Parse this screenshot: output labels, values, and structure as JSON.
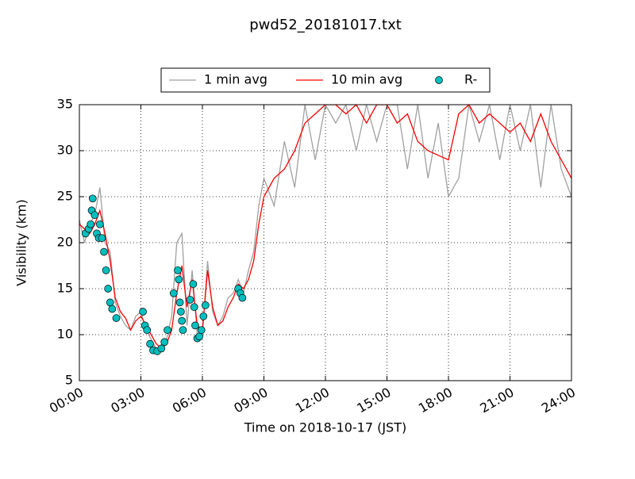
{
  "chart_data": {
    "type": "line",
    "title": "pwd52_20181017.txt",
    "xlabel": "Time on 2018-10-17 (JST)",
    "ylabel": "Visibility (km)",
    "x": [
      0,
      0.25,
      0.5,
      0.75,
      1,
      1.25,
      1.5,
      1.75,
      2,
      2.25,
      2.5,
      2.75,
      3,
      3.25,
      3.5,
      3.75,
      4,
      4.25,
      4.5,
      4.75,
      5,
      5.25,
      5.5,
      5.75,
      6,
      6.25,
      6.5,
      6.75,
      7,
      7.25,
      7.5,
      7.75,
      8,
      8.25,
      8.5,
      8.75,
      9,
      9.5,
      10,
      10.5,
      11,
      11.5,
      12,
      12.5,
      13,
      13.5,
      14,
      14.5,
      15,
      15.5,
      16,
      16.5,
      17,
      17.5,
      18,
      18.5,
      19,
      19.5,
      20,
      20.5,
      21,
      21.5,
      22,
      22.5,
      23,
      23.5,
      24
    ],
    "series": [
      {
        "name": "1 min avg",
        "color": "#a0a0a0",
        "values": [
          22.5,
          20,
          22,
          23,
          26,
          20,
          19,
          13.5,
          12,
          11,
          10.5,
          12,
          12.5,
          10.5,
          9.5,
          8.5,
          8.3,
          9.5,
          12,
          20,
          21,
          11,
          17,
          10,
          10,
          18,
          12.5,
          11,
          12,
          14,
          14.5,
          16,
          14.5,
          17,
          19,
          24,
          27,
          24,
          31,
          26,
          35,
          29,
          35,
          33,
          35,
          30,
          35,
          31,
          35,
          35,
          28,
          35,
          27,
          33,
          25,
          27,
          35,
          31,
          35,
          29,
          35,
          30,
          35,
          26,
          35,
          28,
          25
        ]
      },
      {
        "name": "10 min avg",
        "color": "#ff0000",
        "values": [
          22,
          21.5,
          21,
          22,
          23.5,
          21,
          18,
          14,
          12.5,
          11.8,
          10.5,
          11.5,
          12,
          11,
          10,
          9,
          8.5,
          9,
          10.5,
          14.5,
          17.5,
          13,
          16,
          11,
          10.5,
          17,
          13,
          11,
          11.5,
          13,
          14,
          15.5,
          15,
          16,
          18,
          22,
          25,
          27,
          28,
          30,
          33,
          34,
          35,
          35,
          34,
          35,
          33,
          35,
          35,
          33,
          34,
          31,
          30,
          29.5,
          29,
          34,
          35,
          33,
          34,
          33,
          32,
          33,
          31,
          34,
          31,
          29,
          27
        ]
      },
      {
        "name": "R-",
        "color": "#00bfbf",
        "type": "scatter",
        "x": [
          0.3,
          0.45,
          0.55,
          0.6,
          0.65,
          0.75,
          0.85,
          0.95,
          1.0,
          1.1,
          1.2,
          1.3,
          1.4,
          1.5,
          1.6,
          1.8,
          3.1,
          3.2,
          3.3,
          3.45,
          3.6,
          3.8,
          4.0,
          4.15,
          4.3,
          4.6,
          4.8,
          4.85,
          4.9,
          4.95,
          5.0,
          5.05,
          5.4,
          5.55,
          5.6,
          5.65,
          5.75,
          5.85,
          5.95,
          6.05,
          6.15,
          7.75,
          7.85,
          7.95
        ],
        "values": [
          21,
          21.5,
          22,
          23.5,
          24.8,
          23,
          21,
          20.5,
          22,
          20.5,
          19,
          17,
          15,
          13.5,
          12.8,
          11.8,
          12.5,
          11,
          10.5,
          9,
          8.3,
          8.2,
          8.5,
          9.2,
          10.5,
          14.5,
          17,
          16,
          13.5,
          12.5,
          11.5,
          10.5,
          13.8,
          15.5,
          13,
          11,
          9.6,
          9.8,
          10.5,
          12,
          13.2,
          15,
          14.5,
          14
        ]
      }
    ],
    "xlim": [
      0,
      24
    ],
    "xticks": [
      {
        "value": 0,
        "label": "00:00"
      },
      {
        "value": 3,
        "label": "03:00"
      },
      {
        "value": 6,
        "label": "06:00"
      },
      {
        "value": 9,
        "label": "09:00"
      },
      {
        "value": 12,
        "label": "12:00"
      },
      {
        "value": 15,
        "label": "15:00"
      },
      {
        "value": 18,
        "label": "18:00"
      },
      {
        "value": 21,
        "label": "21:00"
      },
      {
        "value": 24,
        "label": "24:00"
      }
    ],
    "ylim": [
      5,
      35
    ],
    "yticks": [
      5,
      10,
      15,
      20,
      25,
      30,
      35
    ],
    "grid": true,
    "legend": "upper center"
  }
}
